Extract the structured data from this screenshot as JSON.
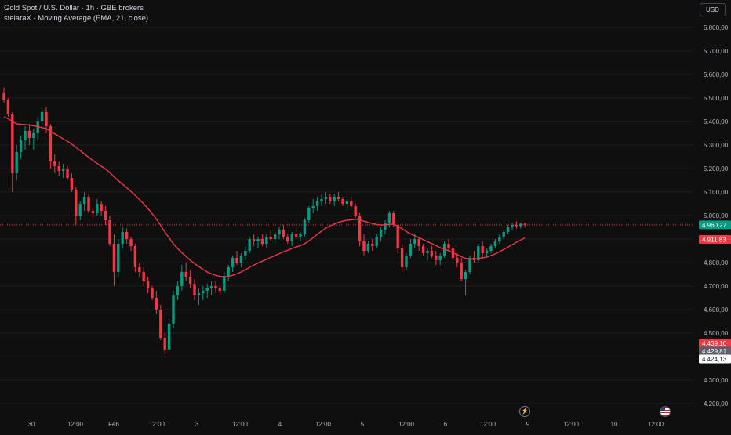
{
  "legend": {
    "line1": "Gold Spot / U.S. Dollar · 1h · GBE brokers",
    "line2": "stelaraX - Moving Average (EMA, 21, close)"
  },
  "currency_label": "USD",
  "colors": {
    "background": "#0f0f0f",
    "up": "#089981",
    "down": "#f23645",
    "ema": "#f23645",
    "grid": "#1c1c1c",
    "text": "#b2b5be"
  },
  "time_axis": [
    "30",
    "12:00",
    "Feb",
    "12:00",
    "3",
    "12:00",
    "4",
    "12:00",
    "5",
    "12:00",
    "6",
    "12:00",
    "9",
    "12:00",
    "10",
    "12:00"
  ],
  "icons": {
    "flash": "flash-icon",
    "flag": "us-flag-icon"
  },
  "chart_data": {
    "type": "candlestick",
    "symbol": "Gold Spot / U.S. Dollar",
    "interval": "1h",
    "source": "GBE brokers",
    "grid": false,
    "y_axis": {
      "range": [
        4150,
        5870
      ],
      "ticks": [
        "5.800,00",
        "5.700,00",
        "5.600,00",
        "5.500,00",
        "5.400,00",
        "5.300,00",
        "5.200,00",
        "5.100,00",
        "5.000,00",
        "4.900,00",
        "4.800,00",
        "4.700,00",
        "4.600,00",
        "4.500,00",
        "4.400,00",
        "4.300,00",
        "4.200,00"
      ],
      "tick_values": [
        5800,
        5700,
        5600,
        5500,
        5400,
        5300,
        5200,
        5100,
        5000,
        4900,
        4800,
        4700,
        4600,
        4500,
        4400,
        4300,
        4200
      ]
    },
    "x_axis": {
      "labels": [
        "30",
        "12:00",
        "Feb",
        "12:00",
        "3",
        "12:00",
        "4",
        "12:00",
        "5",
        "12:00",
        "6",
        "12:00",
        "9",
        "12:00",
        "10",
        "12:00"
      ]
    },
    "price_labels": [
      {
        "text": "4.960,27",
        "value": 4960.27,
        "color": "#089981",
        "kind": "last"
      },
      {
        "text": "4.911,83",
        "value": 4911.83,
        "color": "#f23645",
        "kind": "ema"
      },
      {
        "text": "4.439,10",
        "value": 4439.1,
        "color": "#f23645",
        "kind": "marker"
      },
      {
        "text": "4.429,81",
        "value": 4429.81,
        "color": "#5d606b",
        "kind": "marker"
      },
      {
        "text": "4.424,13",
        "value": 4424.13,
        "color": "#ffffff",
        "kind": "marker"
      }
    ],
    "current_price": 4960.27,
    "candles": [
      [
        5520,
        5545,
        5480,
        5490
      ],
      [
        5490,
        5500,
        5420,
        5430
      ],
      [
        5430,
        5440,
        5100,
        5180
      ],
      [
        5180,
        5300,
        5150,
        5270
      ],
      [
        5270,
        5340,
        5240,
        5320
      ],
      [
        5320,
        5380,
        5280,
        5360
      ],
      [
        5360,
        5390,
        5300,
        5330
      ],
      [
        5330,
        5370,
        5280,
        5350
      ],
      [
        5350,
        5420,
        5320,
        5400
      ],
      [
        5400,
        5450,
        5360,
        5440
      ],
      [
        5440,
        5460,
        5350,
        5380
      ],
      [
        5380,
        5390,
        5200,
        5230
      ],
      [
        5230,
        5260,
        5180,
        5210
      ],
      [
        5210,
        5230,
        5170,
        5190
      ],
      [
        5190,
        5220,
        5160,
        5200
      ],
      [
        5200,
        5210,
        5150,
        5160
      ],
      [
        5160,
        5180,
        5100,
        5110
      ],
      [
        5110,
        5120,
        4960,
        5000
      ],
      [
        5000,
        5060,
        4980,
        5050
      ],
      [
        5050,
        5100,
        5020,
        5080
      ],
      [
        5080,
        5090,
        5010,
        5020
      ],
      [
        5020,
        5030,
        4990,
        5010
      ],
      [
        5010,
        5070,
        5000,
        5050
      ],
      [
        5050,
        5060,
        5000,
        5020
      ],
      [
        5020,
        5040,
        4960,
        4980
      ],
      [
        4980,
        5000,
        4870,
        4880
      ],
      [
        4880,
        4920,
        4700,
        4760
      ],
      [
        4760,
        4900,
        4740,
        4880
      ],
      [
        4880,
        4950,
        4860,
        4930
      ],
      [
        4930,
        4945,
        4880,
        4900
      ],
      [
        4900,
        4910,
        4850,
        4870
      ],
      [
        4870,
        4880,
        4760,
        4780
      ],
      [
        4780,
        4800,
        4740,
        4760
      ],
      [
        4760,
        4780,
        4700,
        4720
      ],
      [
        4720,
        4740,
        4670,
        4690
      ],
      [
        4690,
        4700,
        4640,
        4650
      ],
      [
        4650,
        4680,
        4580,
        4600
      ],
      [
        4600,
        4620,
        4470,
        4480
      ],
      [
        4480,
        4500,
        4410,
        4430
      ],
      [
        4430,
        4560,
        4420,
        4540
      ],
      [
        4540,
        4680,
        4520,
        4660
      ],
      [
        4660,
        4720,
        4640,
        4700
      ],
      [
        4700,
        4790,
        4680,
        4760
      ],
      [
        4760,
        4800,
        4720,
        4740
      ],
      [
        4740,
        4770,
        4690,
        4710
      ],
      [
        4710,
        4730,
        4640,
        4660
      ],
      [
        4660,
        4690,
        4620,
        4670
      ],
      [
        4670,
        4700,
        4640,
        4680
      ],
      [
        4680,
        4710,
        4650,
        4690
      ],
      [
        4690,
        4720,
        4660,
        4700
      ],
      [
        4700,
        4720,
        4670,
        4690
      ],
      [
        4690,
        4700,
        4660,
        4680
      ],
      [
        4680,
        4760,
        4670,
        4740
      ],
      [
        4740,
        4790,
        4720,
        4780
      ],
      [
        4780,
        4830,
        4760,
        4820
      ],
      [
        4820,
        4850,
        4790,
        4800
      ],
      [
        4800,
        4840,
        4780,
        4830
      ],
      [
        4830,
        4870,
        4810,
        4850
      ],
      [
        4850,
        4910,
        4840,
        4900
      ],
      [
        4900,
        4920,
        4870,
        4890
      ],
      [
        4890,
        4910,
        4860,
        4900
      ],
      [
        4900,
        4920,
        4870,
        4880
      ],
      [
        4880,
        4920,
        4860,
        4910
      ],
      [
        4910,
        4940,
        4890,
        4900
      ],
      [
        4900,
        4930,
        4880,
        4920
      ],
      [
        4920,
        4950,
        4900,
        4940
      ],
      [
        4940,
        4960,
        4900,
        4910
      ],
      [
        4910,
        4920,
        4880,
        4890
      ],
      [
        4890,
        4930,
        4870,
        4920
      ],
      [
        4920,
        4950,
        4900,
        4910
      ],
      [
        4910,
        4930,
        4890,
        4920
      ],
      [
        4920,
        4990,
        4910,
        4980
      ],
      [
        4980,
        5040,
        4970,
        5030
      ],
      [
        5030,
        5070,
        5010,
        5040
      ],
      [
        5040,
        5080,
        5020,
        5060
      ],
      [
        5060,
        5090,
        5040,
        5070
      ],
      [
        5070,
        5100,
        5050,
        5080
      ],
      [
        5080,
        5090,
        5050,
        5060
      ],
      [
        5060,
        5090,
        5040,
        5080
      ],
      [
        5080,
        5100,
        5060,
        5070
      ],
      [
        5070,
        5080,
        5040,
        5050
      ],
      [
        5050,
        5070,
        5020,
        5060
      ],
      [
        5060,
        5080,
        5030,
        5040
      ],
      [
        5040,
        5050,
        4990,
        5000
      ],
      [
        5000,
        5010,
        4870,
        4890
      ],
      [
        4890,
        4920,
        4830,
        4850
      ],
      [
        4850,
        4890,
        4840,
        4880
      ],
      [
        4880,
        4900,
        4850,
        4870
      ],
      [
        4870,
        4920,
        4860,
        4910
      ],
      [
        4910,
        4950,
        4890,
        4940
      ],
      [
        4940,
        4980,
        4920,
        4970
      ],
      [
        4970,
        5020,
        4950,
        5010
      ],
      [
        5010,
        5020,
        4950,
        4960
      ],
      [
        4960,
        4970,
        4840,
        4860
      ],
      [
        4860,
        4880,
        4760,
        4780
      ],
      [
        4780,
        4840,
        4770,
        4830
      ],
      [
        4830,
        4900,
        4820,
        4880
      ],
      [
        4880,
        4920,
        4860,
        4900
      ],
      [
        4900,
        4910,
        4850,
        4870
      ],
      [
        4870,
        4880,
        4830,
        4840
      ],
      [
        4840,
        4860,
        4810,
        4850
      ],
      [
        4850,
        4870,
        4820,
        4830
      ],
      [
        4830,
        4850,
        4790,
        4810
      ],
      [
        4810,
        4840,
        4790,
        4830
      ],
      [
        4830,
        4890,
        4820,
        4880
      ],
      [
        4880,
        4900,
        4850,
        4860
      ],
      [
        4860,
        4870,
        4800,
        4820
      ],
      [
        4820,
        4840,
        4780,
        4800
      ],
      [
        4800,
        4820,
        4720,
        4730
      ],
      [
        4730,
        4770,
        4660,
        4760
      ],
      [
        4760,
        4830,
        4750,
        4820
      ],
      [
        4820,
        4850,
        4800,
        4810
      ],
      [
        4810,
        4880,
        4800,
        4870
      ],
      [
        4870,
        4890,
        4820,
        4840
      ],
      [
        4840,
        4860,
        4820,
        4850
      ],
      [
        4850,
        4880,
        4840,
        4870
      ],
      [
        4870,
        4900,
        4860,
        4890
      ],
      [
        4890,
        4920,
        4880,
        4910
      ],
      [
        4910,
        4940,
        4900,
        4930
      ],
      [
        4930,
        4960,
        4920,
        4950
      ],
      [
        4950,
        4970,
        4940,
        4960
      ],
      [
        4960,
        4975,
        4945,
        4955
      ],
      [
        4955,
        4970,
        4945,
        4965
      ],
      [
        4965,
        4970,
        4950,
        4960
      ]
    ],
    "ema": [
      5420,
      5412,
      5400,
      5390,
      5388,
      5387,
      5385,
      5382,
      5378,
      5374,
      5370,
      5358,
      5348,
      5337,
      5326,
      5316,
      5304,
      5290,
      5276,
      5262,
      5248,
      5234,
      5222,
      5210,
      5198,
      5182,
      5165,
      5148,
      5133,
      5118,
      5103,
      5086,
      5068,
      5050,
      5030,
      5008,
      4985,
      4958,
      4930,
      4905,
      4880,
      4860,
      4842,
      4826,
      4810,
      4796,
      4783,
      4771,
      4760,
      4752,
      4746,
      4741,
      4740,
      4741,
      4746,
      4752,
      4760,
      4769,
      4780,
      4789,
      4798,
      4806,
      4814,
      4822,
      4830,
      4838,
      4846,
      4852,
      4860,
      4866,
      4872,
      4880,
      4892,
      4906,
      4920,
      4934,
      4946,
      4956,
      4964,
      4971,
      4976,
      4980,
      4982,
      4984,
      4981,
      4976,
      4971,
      4966,
      4962,
      4960,
      4960,
      4963,
      4963,
      4955,
      4944,
      4932,
      4922,
      4914,
      4906,
      4897,
      4889,
      4881,
      4872,
      4863,
      4857,
      4850,
      4842,
      4834,
      4825,
      4818,
      4816,
      4815,
      4818,
      4820,
      4824,
      4830,
      4837,
      4846,
      4856,
      4866,
      4876,
      4886,
      4896,
      4905
    ]
  }
}
